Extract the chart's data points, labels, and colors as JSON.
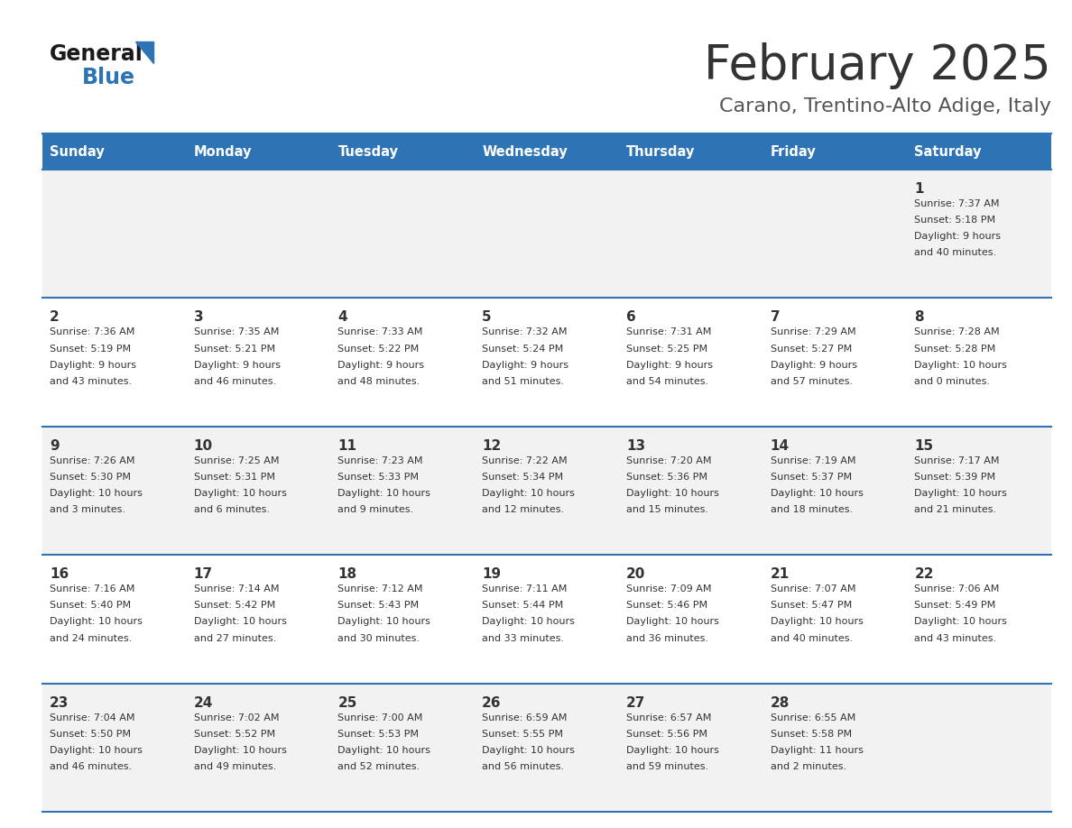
{
  "title": "February 2025",
  "subtitle": "Carano, Trentino-Alto Adige, Italy",
  "days_of_week": [
    "Sunday",
    "Monday",
    "Tuesday",
    "Wednesday",
    "Thursday",
    "Friday",
    "Saturday"
  ],
  "header_bg": "#2E74B5",
  "header_text": "#FFFFFF",
  "row_bg_odd": "#F2F2F2",
  "row_bg_even": "#FFFFFF",
  "cell_border": "#2E74B5",
  "day_number_color": "#333333",
  "cell_text_color": "#333333",
  "title_color": "#333333",
  "subtitle_color": "#555555",
  "logo_general_color": "#1a1a1a",
  "logo_blue_color": "#2E74B5",
  "calendar_data": [
    [
      {
        "day": "",
        "sunrise": "",
        "sunset": "",
        "daylight": ""
      },
      {
        "day": "",
        "sunrise": "",
        "sunset": "",
        "daylight": ""
      },
      {
        "day": "",
        "sunrise": "",
        "sunset": "",
        "daylight": ""
      },
      {
        "day": "",
        "sunrise": "",
        "sunset": "",
        "daylight": ""
      },
      {
        "day": "",
        "sunrise": "",
        "sunset": "",
        "daylight": ""
      },
      {
        "day": "",
        "sunrise": "",
        "sunset": "",
        "daylight": ""
      },
      {
        "day": "1",
        "sunrise": "7:37 AM",
        "sunset": "5:18 PM",
        "daylight": "9 hours",
        "daylight2": "and 40 minutes."
      }
    ],
    [
      {
        "day": "2",
        "sunrise": "7:36 AM",
        "sunset": "5:19 PM",
        "daylight": "9 hours",
        "daylight2": "and 43 minutes."
      },
      {
        "day": "3",
        "sunrise": "7:35 AM",
        "sunset": "5:21 PM",
        "daylight": "9 hours",
        "daylight2": "and 46 minutes."
      },
      {
        "day": "4",
        "sunrise": "7:33 AM",
        "sunset": "5:22 PM",
        "daylight": "9 hours",
        "daylight2": "and 48 minutes."
      },
      {
        "day": "5",
        "sunrise": "7:32 AM",
        "sunset": "5:24 PM",
        "daylight": "9 hours",
        "daylight2": "and 51 minutes."
      },
      {
        "day": "6",
        "sunrise": "7:31 AM",
        "sunset": "5:25 PM",
        "daylight": "9 hours",
        "daylight2": "and 54 minutes."
      },
      {
        "day": "7",
        "sunrise": "7:29 AM",
        "sunset": "5:27 PM",
        "daylight": "9 hours",
        "daylight2": "and 57 minutes."
      },
      {
        "day": "8",
        "sunrise": "7:28 AM",
        "sunset": "5:28 PM",
        "daylight": "10 hours",
        "daylight2": "and 0 minutes."
      }
    ],
    [
      {
        "day": "9",
        "sunrise": "7:26 AM",
        "sunset": "5:30 PM",
        "daylight": "10 hours",
        "daylight2": "and 3 minutes."
      },
      {
        "day": "10",
        "sunrise": "7:25 AM",
        "sunset": "5:31 PM",
        "daylight": "10 hours",
        "daylight2": "and 6 minutes."
      },
      {
        "day": "11",
        "sunrise": "7:23 AM",
        "sunset": "5:33 PM",
        "daylight": "10 hours",
        "daylight2": "and 9 minutes."
      },
      {
        "day": "12",
        "sunrise": "7:22 AM",
        "sunset": "5:34 PM",
        "daylight": "10 hours",
        "daylight2": "and 12 minutes."
      },
      {
        "day": "13",
        "sunrise": "7:20 AM",
        "sunset": "5:36 PM",
        "daylight": "10 hours",
        "daylight2": "and 15 minutes."
      },
      {
        "day": "14",
        "sunrise": "7:19 AM",
        "sunset": "5:37 PM",
        "daylight": "10 hours",
        "daylight2": "and 18 minutes."
      },
      {
        "day": "15",
        "sunrise": "7:17 AM",
        "sunset": "5:39 PM",
        "daylight": "10 hours",
        "daylight2": "and 21 minutes."
      }
    ],
    [
      {
        "day": "16",
        "sunrise": "7:16 AM",
        "sunset": "5:40 PM",
        "daylight": "10 hours",
        "daylight2": "and 24 minutes."
      },
      {
        "day": "17",
        "sunrise": "7:14 AM",
        "sunset": "5:42 PM",
        "daylight": "10 hours",
        "daylight2": "and 27 minutes."
      },
      {
        "day": "18",
        "sunrise": "7:12 AM",
        "sunset": "5:43 PM",
        "daylight": "10 hours",
        "daylight2": "and 30 minutes."
      },
      {
        "day": "19",
        "sunrise": "7:11 AM",
        "sunset": "5:44 PM",
        "daylight": "10 hours",
        "daylight2": "and 33 minutes."
      },
      {
        "day": "20",
        "sunrise": "7:09 AM",
        "sunset": "5:46 PM",
        "daylight": "10 hours",
        "daylight2": "and 36 minutes."
      },
      {
        "day": "21",
        "sunrise": "7:07 AM",
        "sunset": "5:47 PM",
        "daylight": "10 hours",
        "daylight2": "and 40 minutes."
      },
      {
        "day": "22",
        "sunrise": "7:06 AM",
        "sunset": "5:49 PM",
        "daylight": "10 hours",
        "daylight2": "and 43 minutes."
      }
    ],
    [
      {
        "day": "23",
        "sunrise": "7:04 AM",
        "sunset": "5:50 PM",
        "daylight": "10 hours",
        "daylight2": "and 46 minutes."
      },
      {
        "day": "24",
        "sunrise": "7:02 AM",
        "sunset": "5:52 PM",
        "daylight": "10 hours",
        "daylight2": "and 49 minutes."
      },
      {
        "day": "25",
        "sunrise": "7:00 AM",
        "sunset": "5:53 PM",
        "daylight": "10 hours",
        "daylight2": "and 52 minutes."
      },
      {
        "day": "26",
        "sunrise": "6:59 AM",
        "sunset": "5:55 PM",
        "daylight": "10 hours",
        "daylight2": "and 56 minutes."
      },
      {
        "day": "27",
        "sunrise": "6:57 AM",
        "sunset": "5:56 PM",
        "daylight": "10 hours",
        "daylight2": "and 59 minutes."
      },
      {
        "day": "28",
        "sunrise": "6:55 AM",
        "sunset": "5:58 PM",
        "daylight": "11 hours",
        "daylight2": "and 2 minutes."
      },
      {
        "day": "",
        "sunrise": "",
        "sunset": "",
        "daylight": "",
        "daylight2": ""
      }
    ]
  ]
}
